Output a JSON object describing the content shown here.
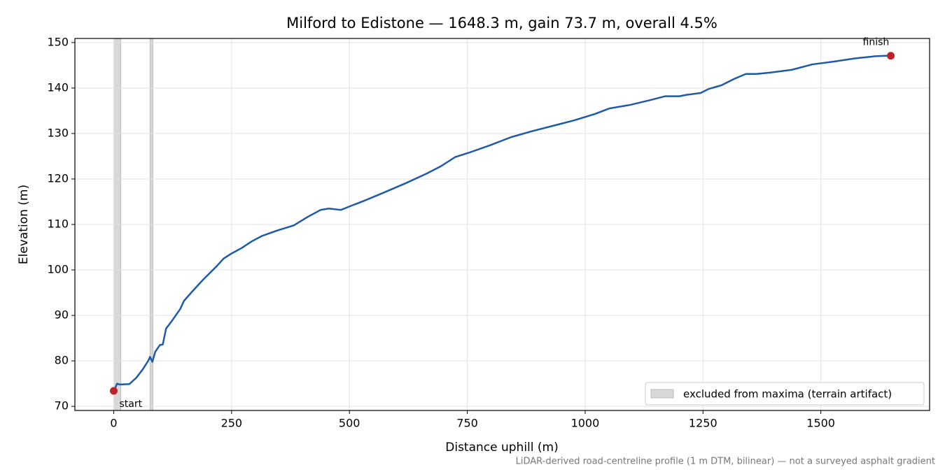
{
  "chart_data": {
    "type": "line",
    "title": "Milford to Edistone — 1648.3 m, gain 73.7 m, overall 4.5%",
    "x_label": "Distance uphill (m)",
    "y_label": "Elevation (m)",
    "footnote": "LiDAR-derived road-centreline profile (1 m DTM, bilinear) — not a surveyed asphalt gradient",
    "x": [
      0,
      3,
      7,
      13,
      33,
      48,
      62,
      73,
      77,
      82,
      88,
      98,
      104,
      111,
      122,
      141,
      149,
      166,
      189,
      219,
      233,
      248,
      271,
      293,
      315,
      345,
      382,
      412,
      439,
      456,
      482,
      501,
      531,
      575,
      620,
      664,
      694,
      724,
      754,
      798,
      843,
      887,
      932,
      977,
      1021,
      1051,
      1096,
      1140,
      1170,
      1200,
      1215,
      1245,
      1262,
      1289,
      1316,
      1341,
      1364,
      1393,
      1438,
      1482,
      1527,
      1571,
      1616,
      1638,
      1648.3
    ],
    "series": [
      {
        "name": "Elevation",
        "color": "#1f5aa6",
        "values": [
          73.4,
          74,
          75,
          74.8,
          74.9,
          76.3,
          78.2,
          80,
          80.9,
          79.8,
          82,
          83.5,
          83.6,
          87.1,
          88.6,
          91.4,
          93.2,
          95.2,
          97.8,
          100.9,
          102.5,
          103.5,
          104.8,
          106.3,
          107.5,
          108.6,
          109.8,
          111.7,
          113.2,
          113.5,
          113.2,
          114,
          115.2,
          117.1,
          119.1,
          121.2,
          122.8,
          124.8,
          125.8,
          127.4,
          129.2,
          130.5,
          131.7,
          132.9,
          134.3,
          135.5,
          136.3,
          137.4,
          138.2,
          138.2,
          138.5,
          138.9,
          139.8,
          140.6,
          142,
          143.1,
          143.1,
          143.4,
          144,
          145.2,
          145.8,
          146.5,
          147,
          147.1,
          147.1
        ]
      }
    ],
    "markers": [
      {
        "label": "start",
        "x": 0,
        "y": 73.4,
        "color": "#c0202a"
      },
      {
        "label": "finish",
        "x": 1648.3,
        "y": 147.1,
        "color": "#c0202a"
      }
    ],
    "excluded_spans": {
      "name": "excluded from maxima (terrain artifact)",
      "color": "#d8d8d6",
      "ranges": [
        [
          0,
          15
        ],
        [
          77,
          83
        ]
      ]
    },
    "xlim": [
      -82.4,
      1730.7
    ],
    "ylim": [
      69.1,
      150.9
    ],
    "xticks": [
      0,
      250,
      500,
      750,
      1000,
      1250,
      1500
    ],
    "yticks": [
      70,
      80,
      90,
      100,
      110,
      120,
      130,
      140,
      150
    ],
    "grid": true,
    "legend": "lower right"
  }
}
